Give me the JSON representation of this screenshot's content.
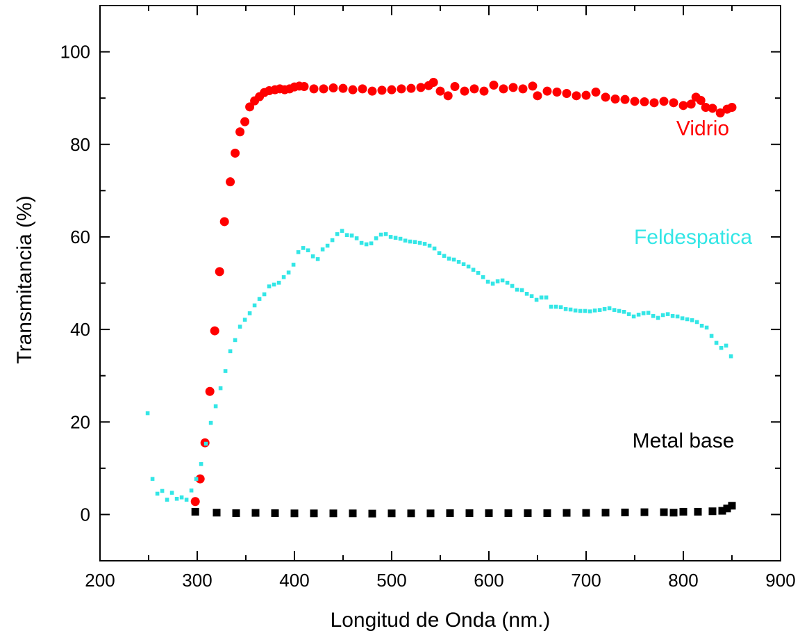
{
  "chart_data": {
    "type": "scatter",
    "title": "",
    "xlabel": "Longitud de Onda (nm.)",
    "ylabel": "Transmitancia (%)",
    "xlim": [
      200,
      900
    ],
    "ylim": [
      -10,
      110
    ],
    "xticks": [
      200,
      300,
      400,
      500,
      600,
      700,
      800,
      900
    ],
    "yticks": [
      0,
      20,
      40,
      60,
      80,
      100
    ],
    "grid": false,
    "legend": "none",
    "series": [
      {
        "name": "Vidrio",
        "color": "#ff0000",
        "marker": "circle",
        "points": [
          [
            298,
            2.8
          ],
          [
            303,
            7.7
          ],
          [
            308,
            15.5
          ],
          [
            313,
            26.6
          ],
          [
            318,
            39.7
          ],
          [
            323,
            52.5
          ],
          [
            328,
            63.3
          ],
          [
            334,
            71.9
          ],
          [
            339,
            78.1
          ],
          [
            344,
            82.7
          ],
          [
            349,
            84.9
          ],
          [
            354,
            88.1
          ],
          [
            359,
            89.4
          ],
          [
            364,
            90.3
          ],
          [
            369,
            91.2
          ],
          [
            374,
            91.6
          ],
          [
            380,
            91.8
          ],
          [
            385,
            92.0
          ],
          [
            390,
            91.8
          ],
          [
            395,
            92.0
          ],
          [
            400,
            92.4
          ],
          [
            405,
            92.6
          ],
          [
            410,
            92.5
          ],
          [
            420,
            92.0
          ],
          [
            430,
            92.0
          ],
          [
            440,
            92.2
          ],
          [
            450,
            92.1
          ],
          [
            460,
            91.8
          ],
          [
            470,
            92.0
          ],
          [
            480,
            91.5
          ],
          [
            490,
            91.7
          ],
          [
            500,
            91.8
          ],
          [
            510,
            92.0
          ],
          [
            520,
            92.1
          ],
          [
            530,
            92.3
          ],
          [
            538,
            92.7
          ],
          [
            543,
            93.4
          ],
          [
            550,
            91.5
          ],
          [
            558,
            90.5
          ],
          [
            565,
            92.5
          ],
          [
            575,
            91.5
          ],
          [
            585,
            92.0
          ],
          [
            595,
            91.5
          ],
          [
            605,
            92.8
          ],
          [
            615,
            92.0
          ],
          [
            625,
            92.3
          ],
          [
            635,
            92.0
          ],
          [
            645,
            92.6
          ],
          [
            650,
            90.5
          ],
          [
            660,
            91.5
          ],
          [
            670,
            91.3
          ],
          [
            680,
            91.0
          ],
          [
            690,
            90.5
          ],
          [
            700,
            90.6
          ],
          [
            710,
            91.3
          ],
          [
            720,
            90.2
          ],
          [
            730,
            89.8
          ],
          [
            740,
            89.7
          ],
          [
            750,
            89.3
          ],
          [
            760,
            89.2
          ],
          [
            770,
            89.0
          ],
          [
            780,
            89.3
          ],
          [
            790,
            89.0
          ],
          [
            800,
            88.4
          ],
          [
            808,
            88.7
          ],
          [
            813,
            90.2
          ],
          [
            818,
            89.5
          ],
          [
            823,
            88.0
          ],
          [
            830,
            87.8
          ],
          [
            838,
            86.8
          ],
          [
            845,
            87.6
          ],
          [
            850,
            88.0
          ]
        ]
      },
      {
        "name": "Feldespatica",
        "color": "#33e6e6",
        "marker": "square-small",
        "points": [
          [
            249,
            21.9
          ],
          [
            254,
            7.7
          ],
          [
            259,
            4.5
          ],
          [
            264,
            5.1
          ],
          [
            269,
            3.2
          ],
          [
            274,
            4.7
          ],
          [
            279,
            3.4
          ],
          [
            284,
            3.7
          ],
          [
            289,
            3.2
          ],
          [
            294,
            5.2
          ],
          [
            299,
            7.7
          ],
          [
            304,
            10.9
          ],
          [
            309,
            15.3
          ],
          [
            314,
            19.8
          ],
          [
            319,
            23.4
          ],
          [
            324,
            27.3
          ],
          [
            329,
            31.0
          ],
          [
            334,
            35.3
          ],
          [
            339,
            37.7
          ],
          [
            344,
            40.6
          ],
          [
            349,
            42.1
          ],
          [
            354,
            43.5
          ],
          [
            359,
            45.2
          ],
          [
            364,
            46.6
          ],
          [
            369,
            47.6
          ],
          [
            374,
            49.3
          ],
          [
            379,
            49.7
          ],
          [
            384,
            50.1
          ],
          [
            389,
            51.3
          ],
          [
            394,
            52.3
          ],
          [
            399,
            54.0
          ],
          [
            404,
            56.7
          ],
          [
            409,
            57.6
          ],
          [
            414,
            57.1
          ],
          [
            419,
            55.8
          ],
          [
            424,
            55.2
          ],
          [
            429,
            57.3
          ],
          [
            434,
            58.1
          ],
          [
            439,
            59.3
          ],
          [
            444,
            60.6
          ],
          [
            449,
            61.3
          ],
          [
            454,
            60.4
          ],
          [
            459,
            60.3
          ],
          [
            464,
            59.7
          ],
          [
            469,
            58.7
          ],
          [
            474,
            58.4
          ],
          [
            479,
            58.6
          ],
          [
            484,
            59.7
          ],
          [
            489,
            60.5
          ],
          [
            494,
            60.6
          ],
          [
            499,
            60.0
          ],
          [
            504,
            59.8
          ],
          [
            509,
            59.6
          ],
          [
            514,
            59.2
          ],
          [
            519,
            59.0
          ],
          [
            524,
            58.9
          ],
          [
            529,
            58.7
          ],
          [
            534,
            58.5
          ],
          [
            539,
            58.1
          ],
          [
            544,
            57.5
          ],
          [
            549,
            56.5
          ],
          [
            554,
            55.9
          ],
          [
            559,
            55.3
          ],
          [
            564,
            55.1
          ],
          [
            569,
            54.6
          ],
          [
            574,
            54.1
          ],
          [
            579,
            53.6
          ],
          [
            584,
            52.9
          ],
          [
            589,
            52.2
          ],
          [
            594,
            51.3
          ],
          [
            599,
            50.3
          ],
          [
            604,
            49.9
          ],
          [
            609,
            50.4
          ],
          [
            614,
            50.6
          ],
          [
            619,
            50.1
          ],
          [
            624,
            49.4
          ],
          [
            629,
            48.6
          ],
          [
            634,
            48.5
          ],
          [
            639,
            47.7
          ],
          [
            644,
            47.2
          ],
          [
            649,
            46.4
          ],
          [
            654,
            46.9
          ],
          [
            659,
            46.9
          ],
          [
            664,
            44.9
          ],
          [
            669,
            44.9
          ],
          [
            674,
            44.8
          ],
          [
            679,
            44.4
          ],
          [
            684,
            44.3
          ],
          [
            689,
            44.1
          ],
          [
            694,
            44.0
          ],
          [
            699,
            44.0
          ],
          [
            704,
            43.9
          ],
          [
            709,
            44.1
          ],
          [
            714,
            44.2
          ],
          [
            719,
            44.4
          ],
          [
            724,
            44.6
          ],
          [
            729,
            44.2
          ],
          [
            734,
            44.0
          ],
          [
            739,
            43.8
          ],
          [
            744,
            43.3
          ],
          [
            749,
            42.8
          ],
          [
            754,
            43.2
          ],
          [
            759,
            43.5
          ],
          [
            764,
            43.6
          ],
          [
            769,
            42.9
          ],
          [
            774,
            42.5
          ],
          [
            779,
            43.1
          ],
          [
            784,
            43.3
          ],
          [
            789,
            42.9
          ],
          [
            794,
            42.8
          ],
          [
            799,
            42.4
          ],
          [
            804,
            42.2
          ],
          [
            809,
            42.0
          ],
          [
            814,
            41.6
          ],
          [
            819,
            40.8
          ],
          [
            824,
            40.4
          ],
          [
            829,
            38.6
          ],
          [
            834,
            37.1
          ],
          [
            839,
            36.0
          ],
          [
            844,
            36.5
          ],
          [
            849,
            34.2
          ]
        ]
      },
      {
        "name": "Metal base",
        "color": "#000000",
        "marker": "square",
        "points": [
          [
            298,
            0.6
          ],
          [
            320,
            0.4
          ],
          [
            340,
            0.3
          ],
          [
            360,
            0.35
          ],
          [
            380,
            0.3
          ],
          [
            400,
            0.25
          ],
          [
            420,
            0.25
          ],
          [
            440,
            0.25
          ],
          [
            460,
            0.25
          ],
          [
            480,
            0.2
          ],
          [
            500,
            0.25
          ],
          [
            520,
            0.25
          ],
          [
            540,
            0.25
          ],
          [
            560,
            0.3
          ],
          [
            580,
            0.3
          ],
          [
            600,
            0.3
          ],
          [
            620,
            0.3
          ],
          [
            640,
            0.3
          ],
          [
            660,
            0.3
          ],
          [
            680,
            0.35
          ],
          [
            700,
            0.35
          ],
          [
            720,
            0.4
          ],
          [
            740,
            0.45
          ],
          [
            760,
            0.5
          ],
          [
            780,
            0.5
          ],
          [
            790,
            0.4
          ],
          [
            800,
            0.6
          ],
          [
            815,
            0.6
          ],
          [
            830,
            0.7
          ],
          [
            840,
            0.8
          ],
          [
            845,
            1.3
          ],
          [
            850,
            1.9
          ]
        ]
      }
    ],
    "annotations": [
      {
        "text": "Vidrio",
        "x": 820,
        "y": 82,
        "color": "#ff0000"
      },
      {
        "text": "Feldespatica",
        "x": 810,
        "y": 58.5,
        "color": "#33e6e6"
      },
      {
        "text": "Metal base",
        "x": 800,
        "y": 14.5,
        "color": "#000000"
      }
    ]
  }
}
